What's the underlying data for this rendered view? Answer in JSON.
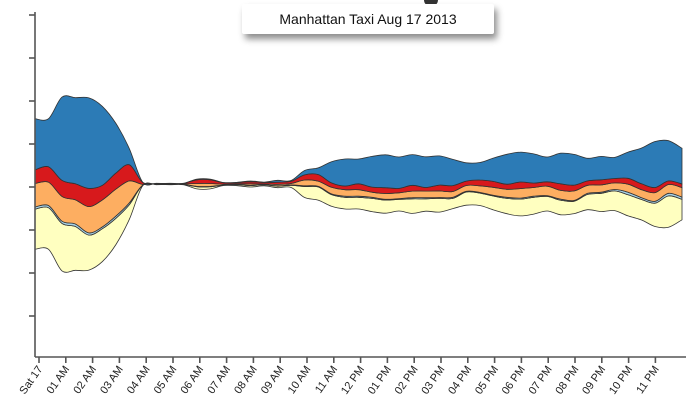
{
  "chart_data": {
    "type": "area",
    "subtype": "streamgraph",
    "title": "Manhattan Taxi Aug 17 2013",
    "x_tick_labels": [
      "Sat 17",
      "01 AM",
      "02 AM",
      "03 AM",
      "04 AM",
      "05 AM",
      "06 AM",
      "07 AM",
      "08 AM",
      "09 AM",
      "10 AM",
      "11 AM",
      "12 PM",
      "01 PM",
      "02 PM",
      "03 PM",
      "04 PM",
      "05 PM",
      "06 PM",
      "07 PM",
      "08 PM",
      "09 PM",
      "10 PM",
      "11 PM"
    ],
    "x_hours": [
      0,
      0.5,
      1,
      1.5,
      2,
      2.5,
      3,
      3.5,
      4,
      4.5,
      5,
      5.5,
      6,
      6.5,
      7,
      7.5,
      8,
      8.5,
      9,
      9.5,
      10,
      10.5,
      11,
      11.5,
      12,
      12.5,
      13,
      13.5,
      14,
      14.5,
      15,
      15.5,
      16,
      16.5,
      17,
      17.5,
      18,
      18.5,
      19,
      19.5,
      20,
      20.5,
      21,
      21.5,
      22,
      22.5,
      23,
      23.5,
      24
    ],
    "baseline": "centered",
    "grid": false,
    "legend": "none",
    "series": [
      {
        "color": "#ffffc0",
        "values": [
          5.5,
          5.7,
          6.5,
          6.0,
          4.8,
          4.5,
          3.6,
          2.0,
          0.05,
          0.05,
          0.05,
          0.05,
          0.3,
          0.3,
          0.05,
          0.15,
          0.2,
          0.15,
          0.2,
          0.3,
          1.5,
          1.8,
          1.6,
          1.6,
          1.6,
          1.8,
          1.8,
          1.6,
          2.0,
          1.7,
          1.9,
          1.4,
          1.8,
          1.7,
          1.9,
          2.1,
          2.3,
          2.3,
          2.0,
          2.0,
          1.7,
          2.1,
          2.5,
          2.7,
          2.9,
          2.8,
          3.2,
          4.3,
          2.8
        ]
      },
      {
        "color": "#a6d1e5",
        "values": [
          0.3,
          0.3,
          0.3,
          0.35,
          0.3,
          0.25,
          0.3,
          0.25,
          0.02,
          0.02,
          0.02,
          0.02,
          0.05,
          0.05,
          0.02,
          0.02,
          0.02,
          0.02,
          0.05,
          0.05,
          0.1,
          0.1,
          0.1,
          0.15,
          0.15,
          0.15,
          0.1,
          0.1,
          0.15,
          0.15,
          0.1,
          0.15,
          0.1,
          0.1,
          0.1,
          0.15,
          0.15,
          0.15,
          0.1,
          0.15,
          0.1,
          0.15,
          0.15,
          0.2,
          0.35,
          0.25,
          0.25,
          0.35,
          0.3
        ]
      },
      {
        "color": "#fdae61",
        "values": [
          3.2,
          3.2,
          3.4,
          3.3,
          3.6,
          3.7,
          3.7,
          3.0,
          0.1,
          0.05,
          0.05,
          0.05,
          0.4,
          0.4,
          0.1,
          0.1,
          0.2,
          0.1,
          0.2,
          0.2,
          0.8,
          0.7,
          0.9,
          0.9,
          0.9,
          0.7,
          0.8,
          0.8,
          0.9,
          0.9,
          0.9,
          0.8,
          0.8,
          0.9,
          1.1,
          1.1,
          1.3,
          1.2,
          1.3,
          1.2,
          1.3,
          1.1,
          1.0,
          0.9,
          1.1,
          1.1,
          1.2,
          1.2,
          1.3
        ]
      },
      {
        "color": "#d7191c",
        "values": [
          1.9,
          2.1,
          2.2,
          2.2,
          2.5,
          2.0,
          2.2,
          2.2,
          0.25,
          0.05,
          0.05,
          0.05,
          0.5,
          0.5,
          0.2,
          0.15,
          0.3,
          0.2,
          0.3,
          0.3,
          0.7,
          0.9,
          0.6,
          0.5,
          0.8,
          0.7,
          0.8,
          0.6,
          0.8,
          0.5,
          0.8,
          0.8,
          0.6,
          0.8,
          0.8,
          0.7,
          0.9,
          0.6,
          0.6,
          0.9,
          0.8,
          0.6,
          0.7,
          0.6,
          0.8,
          0.8,
          0.7,
          0.5,
          0.5
        ]
      },
      {
        "color": "#2c7bb6",
        "values": [
          7.0,
          6.6,
          11.4,
          11.8,
          12.4,
          10.8,
          6.8,
          2.2,
          0.02,
          0.02,
          0.02,
          0.02,
          0.1,
          0.1,
          0.05,
          0.05,
          0.1,
          0.05,
          0.25,
          0.1,
          0.6,
          0.9,
          2.9,
          3.7,
          3.4,
          4.2,
          4.5,
          4.3,
          4.2,
          4.2,
          4.0,
          3.6,
          2.5,
          2.4,
          3.2,
          4.1,
          4.1,
          4.0,
          3.4,
          4.2,
          4.2,
          3.1,
          3.2,
          2.9,
          3.6,
          4.9,
          6.3,
          5.5,
          4.9
        ]
      }
    ]
  }
}
